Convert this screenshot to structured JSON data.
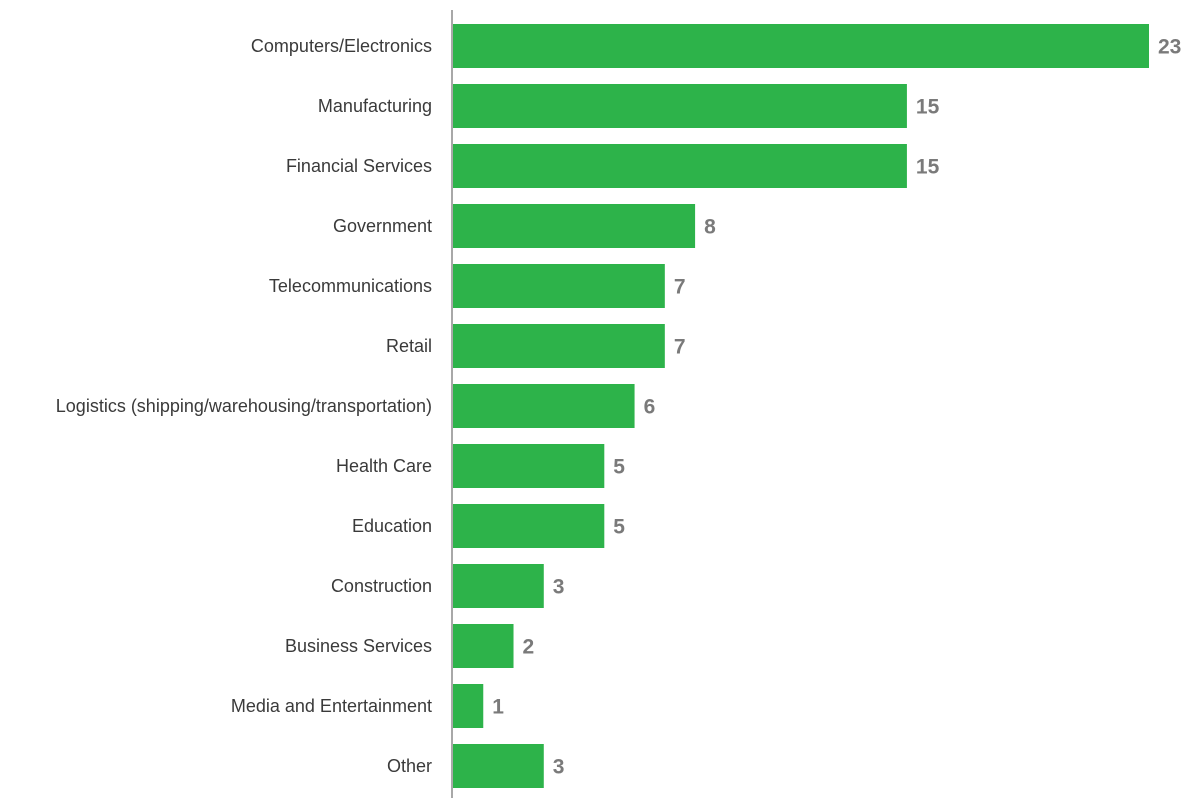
{
  "chart_data": {
    "type": "bar",
    "orientation": "horizontal",
    "categories": [
      "Computers/Electronics",
      "Manufacturing",
      "Financial Services",
      "Government",
      "Telecommunications",
      "Retail",
      "Logistics (shipping/warehousing/transportation)",
      "Health Care",
      "Education",
      "Construction",
      "Business Services",
      "Media and Entertainment",
      "Other"
    ],
    "values": [
      23,
      15,
      15,
      8,
      7,
      7,
      6,
      5,
      5,
      3,
      2,
      1,
      3
    ],
    "title": "",
    "xlabel": "",
    "ylabel": "",
    "xlim": [
      0,
      23
    ],
    "grid": false,
    "legend": "none",
    "data_labels": true,
    "colors": {
      "bar": "#2db34a",
      "value_label": "#7a7a7a",
      "category_label": "#3a3a3a",
      "axis": "#8c8c8c"
    }
  }
}
